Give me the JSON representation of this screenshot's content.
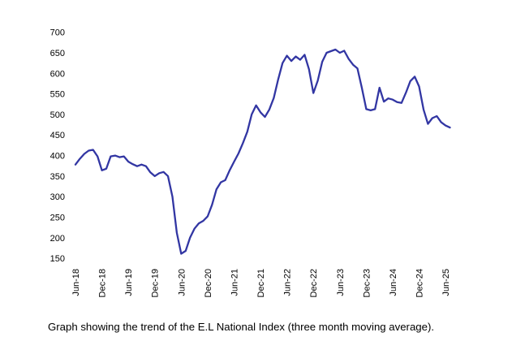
{
  "window": {
    "background": "#ffffff"
  },
  "caption": {
    "text": "Graph showing the trend of the E.L National Index (three month moving average)."
  },
  "chart_data": {
    "type": "line",
    "title": "",
    "xlabel": "",
    "ylabel": "",
    "ylim": [
      150,
      700
    ],
    "y_ticks": [
      700,
      650,
      600,
      550,
      500,
      450,
      400,
      350,
      300,
      250,
      200,
      150
    ],
    "x_tick_labels": [
      "Jun-18",
      "Dec-18",
      "Jun-19",
      "Dec-19",
      "Jun-20",
      "Dec-20",
      "Jun-21",
      "Dec-21",
      "Jun-22",
      "Dec-22",
      "Jun-23",
      "Dec-23",
      "Jun-24",
      "Dec-24",
      "Jun-25"
    ],
    "grid": false,
    "legend": false,
    "axis_lines": false,
    "line_color": "#3236a3",
    "label_color": "#000000",
    "series": [
      {
        "name": "E.L National Index (three month moving average)",
        "x": [
          "Jun-18",
          "Jul-18",
          "Aug-18",
          "Sep-18",
          "Oct-18",
          "Nov-18",
          "Dec-18",
          "Jan-19",
          "Feb-19",
          "Mar-19",
          "Apr-19",
          "May-19",
          "Jun-19",
          "Jul-19",
          "Aug-19",
          "Sep-19",
          "Oct-19",
          "Nov-19",
          "Dec-19",
          "Jan-20",
          "Feb-20",
          "Mar-20",
          "Apr-20",
          "May-20",
          "Jun-20",
          "Jul-20",
          "Aug-20",
          "Sep-20",
          "Oct-20",
          "Nov-20",
          "Dec-20",
          "Jan-21",
          "Feb-21",
          "Mar-21",
          "Apr-21",
          "May-21",
          "Jun-21",
          "Jul-21",
          "Aug-21",
          "Sep-21",
          "Oct-21",
          "Nov-21",
          "Dec-21",
          "Jan-22",
          "Feb-22",
          "Mar-22",
          "Apr-22",
          "May-22",
          "Jun-22",
          "Jul-22",
          "Aug-22",
          "Sep-22",
          "Oct-22",
          "Nov-22",
          "Dec-22",
          "Jan-23",
          "Feb-23",
          "Mar-23",
          "Apr-23",
          "May-23",
          "Jun-23",
          "Jul-23",
          "Aug-23",
          "Sep-23",
          "Oct-23",
          "Nov-23",
          "Dec-23",
          "Jan-24",
          "Feb-24",
          "Mar-24",
          "Apr-24",
          "May-24",
          "Jun-24",
          "Jul-24",
          "Aug-24",
          "Sep-24",
          "Oct-24",
          "Nov-24",
          "Dec-24",
          "Jan-25",
          "Feb-25",
          "Mar-25",
          "Apr-25",
          "May-25",
          "Jun-25",
          "Jul-25"
        ],
        "values": [
          378,
          392,
          404,
          412,
          414,
          398,
          364,
          368,
          398,
          400,
          396,
          398,
          385,
          379,
          374,
          378,
          374,
          359,
          350,
          357,
          360,
          350,
          300,
          212,
          161,
          168,
          200,
          222,
          235,
          241,
          252,
          280,
          318,
          335,
          340,
          364,
          385,
          405,
          430,
          458,
          500,
          522,
          505,
          494,
          512,
          540,
          585,
          625,
          643,
          630,
          641,
          633,
          645,
          610,
          552,
          582,
          628,
          650,
          654,
          658,
          650,
          655,
          635,
          621,
          612,
          565,
          513,
          510,
          513,
          565,
          531,
          539,
          536,
          530,
          528,
          553,
          581,
          592,
          568,
          512,
          477,
          491,
          496,
          481,
          473,
          468
        ]
      }
    ]
  }
}
